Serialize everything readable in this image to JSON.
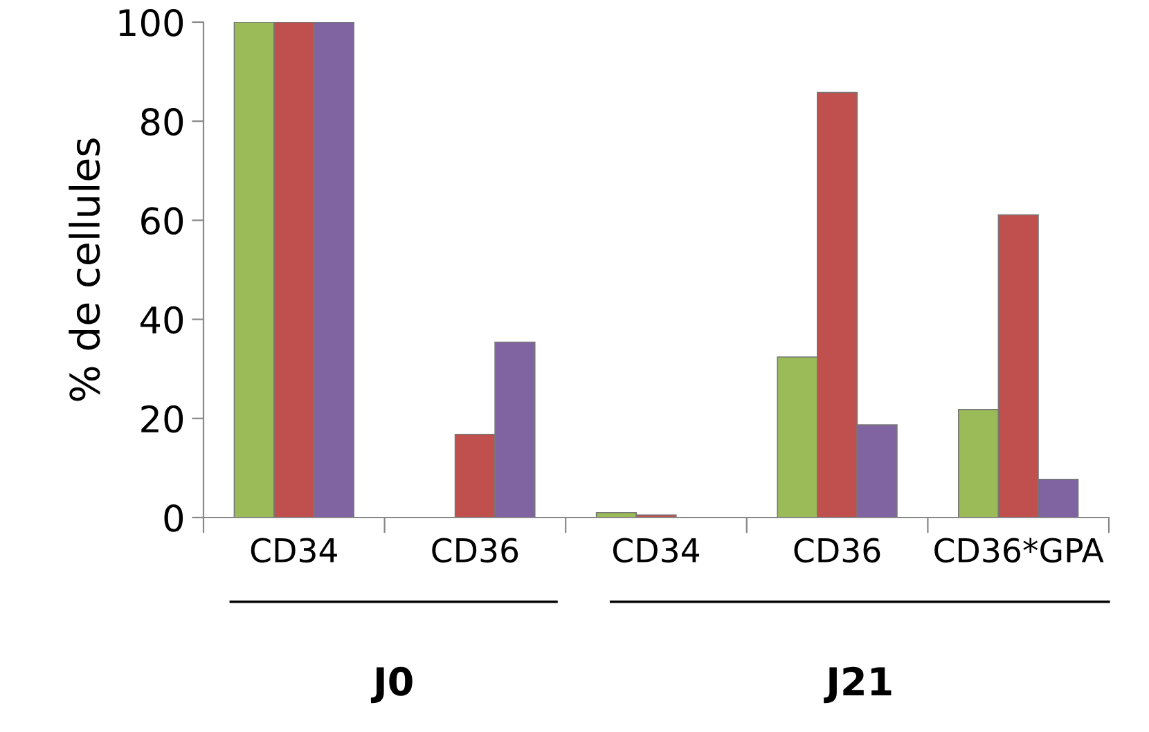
{
  "chart_data": {
    "type": "bar",
    "ylabel": "% de cellules",
    "categories": [
      "CD34",
      "CD36",
      "CD34",
      "CD36",
      "CD36*GPA"
    ],
    "series": [
      {
        "color": "#9bbb59",
        "values": [
          100,
          null,
          1.0,
          32.4,
          21.8
        ]
      },
      {
        "color": "#c0504d",
        "values": [
          100,
          16.8,
          0.5,
          85.8,
          61.1
        ]
      },
      {
        "color": "#8064a2",
        "values": [
          100,
          35.4,
          null,
          18.7,
          7.7
        ]
      }
    ],
    "ylim": [
      0,
      100
    ],
    "yticks": [
      0,
      20,
      40,
      60,
      80,
      100
    ],
    "grid": false,
    "legend": false,
    "annotations": [
      "J0",
      "J21"
    ]
  }
}
